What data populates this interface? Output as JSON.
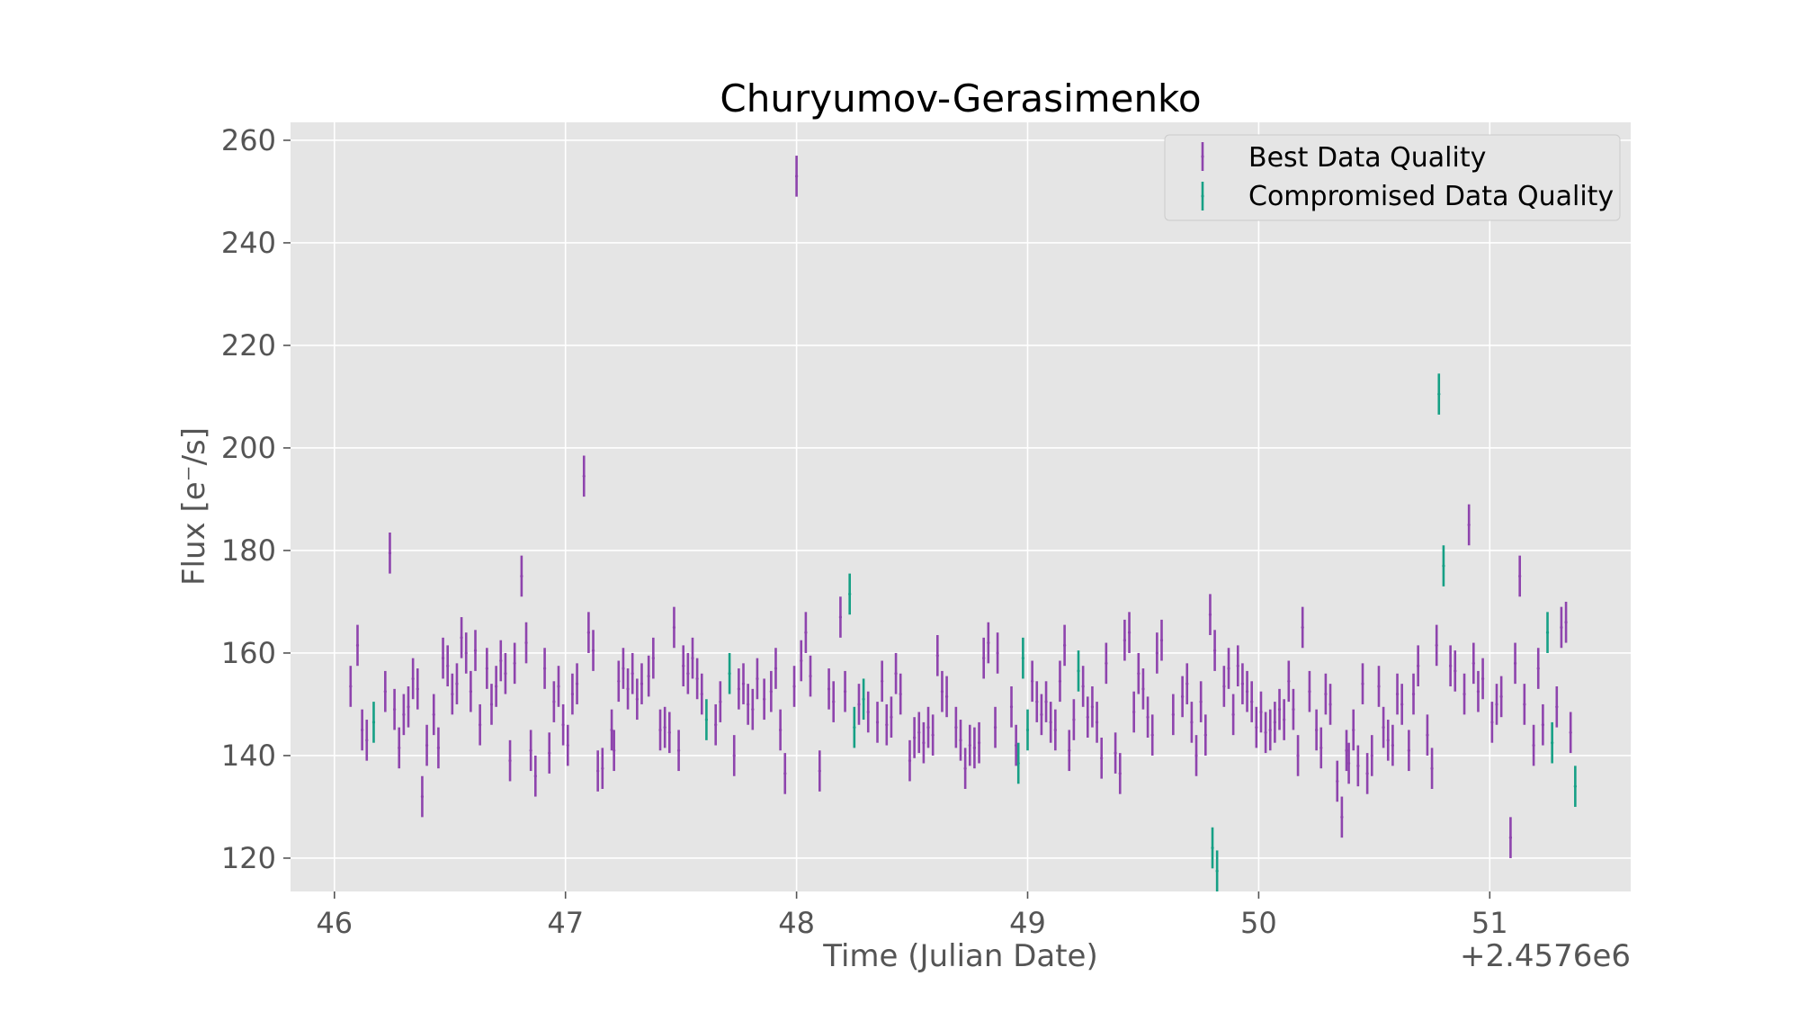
{
  "chart_data": {
    "type": "scatter",
    "title": "Churyumov-Gerasimenko",
    "xlabel": "Time (Julian Date)",
    "ylabel": "Flux [e⁻/s]",
    "x_offset_label": "+2.4576e6",
    "xlim": [
      45.81,
      51.61
    ],
    "ylim": [
      113.5,
      263.5
    ],
    "x_ticks": [
      46,
      47,
      48,
      49,
      50,
      51
    ],
    "x_tick_labels": [
      "46",
      "47",
      "48",
      "49",
      "50",
      "51"
    ],
    "y_ticks": [
      120,
      140,
      160,
      180,
      200,
      220,
      240,
      260
    ],
    "y_tick_labels": [
      "120",
      "140",
      "160",
      "180",
      "200",
      "220",
      "240",
      "260"
    ],
    "grid": true,
    "legend_position": "upper right",
    "colors": {
      "best": "#8e44ad",
      "compromised": "#16a085",
      "plot_background": "#e5e5e5",
      "grid": "#ffffff"
    },
    "series": [
      {
        "name": "Best Data Quality",
        "color": "#8e44ad",
        "error": 4,
        "points": [
          [
            46.07,
            153.5
          ],
          [
            46.1,
            161.5
          ],
          [
            46.12,
            145
          ],
          [
            46.14,
            143
          ],
          [
            46.22,
            152.5
          ],
          [
            46.24,
            179.5
          ],
          [
            46.26,
            149
          ],
          [
            46.28,
            141.5
          ],
          [
            46.3,
            148
          ],
          [
            46.32,
            149.5
          ],
          [
            46.34,
            155
          ],
          [
            46.36,
            153
          ],
          [
            46.38,
            132
          ],
          [
            46.4,
            142
          ],
          [
            46.43,
            148
          ],
          [
            46.45,
            141.5
          ],
          [
            46.47,
            159
          ],
          [
            46.49,
            157.5
          ],
          [
            46.51,
            152
          ],
          [
            46.53,
            154
          ],
          [
            46.55,
            163
          ],
          [
            46.57,
            160
          ],
          [
            46.59,
            152.5
          ],
          [
            46.61,
            160.5
          ],
          [
            46.63,
            146
          ],
          [
            46.66,
            157
          ],
          [
            46.68,
            150
          ],
          [
            46.7,
            153.5
          ],
          [
            46.72,
            158.5
          ],
          [
            46.74,
            156
          ],
          [
            46.76,
            139
          ],
          [
            46.78,
            158
          ],
          [
            46.81,
            175
          ],
          [
            46.83,
            162
          ],
          [
            46.85,
            141
          ],
          [
            46.87,
            136
          ],
          [
            46.91,
            157
          ],
          [
            46.93,
            140.5
          ],
          [
            46.95,
            150.5
          ],
          [
            46.97,
            153.5
          ],
          [
            46.99,
            146
          ],
          [
            47.01,
            142
          ],
          [
            47.03,
            152
          ],
          [
            47.05,
            154
          ],
          [
            47.08,
            194.5
          ],
          [
            47.1,
            164
          ],
          [
            47.12,
            160.5
          ],
          [
            47.14,
            137
          ],
          [
            47.16,
            137.5
          ],
          [
            47.2,
            145
          ],
          [
            47.21,
            141
          ],
          [
            47.23,
            154.5
          ],
          [
            47.25,
            157
          ],
          [
            47.27,
            153
          ],
          [
            47.29,
            156
          ],
          [
            47.31,
            151
          ],
          [
            47.33,
            154
          ],
          [
            47.36,
            155.5
          ],
          [
            47.38,
            159
          ],
          [
            47.41,
            145
          ],
          [
            47.43,
            145.5
          ],
          [
            47.45,
            144.5
          ],
          [
            47.47,
            165
          ],
          [
            47.49,
            141
          ],
          [
            47.51,
            157.5
          ],
          [
            47.53,
            156
          ],
          [
            47.55,
            159
          ],
          [
            47.57,
            155
          ],
          [
            47.59,
            152
          ],
          [
            47.65,
            146
          ],
          [
            47.67,
            150.5
          ],
          [
            47.73,
            140
          ],
          [
            47.75,
            153
          ],
          [
            47.77,
            154
          ],
          [
            47.79,
            150
          ],
          [
            47.81,
            149
          ],
          [
            47.83,
            155
          ],
          [
            47.86,
            151
          ],
          [
            47.89,
            152.5
          ],
          [
            47.91,
            157
          ],
          [
            47.93,
            145
          ],
          [
            47.95,
            136.5
          ],
          [
            47.99,
            153.5
          ],
          [
            48.0,
            253
          ],
          [
            48.02,
            158.5
          ],
          [
            48.04,
            164
          ],
          [
            48.06,
            155.5
          ],
          [
            48.1,
            137
          ],
          [
            48.14,
            153
          ],
          [
            48.16,
            150.5
          ],
          [
            48.19,
            167
          ],
          [
            48.21,
            152.5
          ],
          [
            48.27,
            150
          ],
          [
            48.31,
            148.5
          ],
          [
            48.35,
            146.5
          ],
          [
            48.37,
            154.5
          ],
          [
            48.39,
            146
          ],
          [
            48.41,
            147.5
          ],
          [
            48.43,
            156
          ],
          [
            48.45,
            152
          ],
          [
            48.49,
            139
          ],
          [
            48.51,
            143.5
          ],
          [
            48.53,
            144.5
          ],
          [
            48.55,
            142.5
          ],
          [
            48.57,
            145.5
          ],
          [
            48.59,
            144
          ],
          [
            48.61,
            159.5
          ],
          [
            48.63,
            152.5
          ],
          [
            48.65,
            151.5
          ],
          [
            48.69,
            145.5
          ],
          [
            48.71,
            143
          ],
          [
            48.73,
            137.5
          ],
          [
            48.75,
            142
          ],
          [
            48.77,
            141.5
          ],
          [
            48.79,
            142.5
          ],
          [
            48.81,
            159
          ],
          [
            48.83,
            162
          ],
          [
            48.86,
            145.5
          ],
          [
            48.87,
            160
          ],
          [
            48.93,
            149.5
          ],
          [
            48.95,
            142
          ],
          [
            49.02,
            154.5
          ],
          [
            49.04,
            150.5
          ],
          [
            49.06,
            148
          ],
          [
            49.08,
            150.5
          ],
          [
            49.1,
            146.5
          ],
          [
            49.12,
            145
          ],
          [
            49.14,
            154.5
          ],
          [
            49.16,
            161.5
          ],
          [
            49.18,
            141
          ],
          [
            49.2,
            147
          ],
          [
            49.24,
            153.5
          ],
          [
            49.26,
            147.5
          ],
          [
            49.28,
            149.5
          ],
          [
            49.3,
            146.5
          ],
          [
            49.32,
            139.5
          ],
          [
            49.34,
            158
          ],
          [
            49.38,
            140.5
          ],
          [
            49.4,
            136.5
          ],
          [
            49.42,
            162.5
          ],
          [
            49.44,
            164
          ],
          [
            49.46,
            148.5
          ],
          [
            49.48,
            156
          ],
          [
            49.5,
            153
          ],
          [
            49.52,
            147.5
          ],
          [
            49.54,
            144
          ],
          [
            49.56,
            160
          ],
          [
            49.58,
            162.5
          ],
          [
            49.63,
            148
          ],
          [
            49.67,
            151.5
          ],
          [
            49.69,
            154
          ],
          [
            49.71,
            146.5
          ],
          [
            49.73,
            140
          ],
          [
            49.75,
            150.5
          ],
          [
            49.77,
            144
          ],
          [
            49.79,
            167.5
          ],
          [
            49.81,
            160.5
          ],
          [
            49.85,
            153.5
          ],
          [
            49.87,
            157
          ],
          [
            49.89,
            148
          ],
          [
            49.91,
            157.5
          ],
          [
            49.93,
            154
          ],
          [
            49.95,
            152.5
          ],
          [
            49.97,
            150.5
          ],
          [
            49.99,
            145.5
          ],
          [
            50.01,
            148.5
          ],
          [
            50.03,
            144.5
          ],
          [
            50.05,
            145
          ],
          [
            50.07,
            146.5
          ],
          [
            50.09,
            149
          ],
          [
            50.11,
            147
          ],
          [
            50.13,
            154.5
          ],
          [
            50.15,
            149
          ],
          [
            50.17,
            140
          ],
          [
            50.19,
            165
          ],
          [
            50.22,
            152.5
          ],
          [
            50.25,
            145
          ],
          [
            50.27,
            141.5
          ],
          [
            50.29,
            152
          ],
          [
            50.31,
            150
          ],
          [
            50.34,
            135
          ],
          [
            50.36,
            128
          ],
          [
            50.38,
            141
          ],
          [
            50.39,
            138.5
          ],
          [
            50.41,
            145
          ],
          [
            50.43,
            138
          ],
          [
            50.45,
            154
          ],
          [
            50.47,
            136.5
          ],
          [
            50.49,
            140
          ],
          [
            50.52,
            153.5
          ],
          [
            50.54,
            145.5
          ],
          [
            50.56,
            143
          ],
          [
            50.58,
            142
          ],
          [
            50.6,
            152
          ],
          [
            50.62,
            150
          ],
          [
            50.65,
            141
          ],
          [
            50.67,
            152
          ],
          [
            50.69,
            157.5
          ],
          [
            50.73,
            144
          ],
          [
            50.75,
            137.5
          ],
          [
            50.77,
            161.5
          ],
          [
            50.83,
            157.5
          ],
          [
            50.85,
            156.5
          ],
          [
            50.89,
            152
          ],
          [
            50.91,
            185
          ],
          [
            50.93,
            158
          ],
          [
            50.95,
            152.5
          ],
          [
            50.97,
            155
          ],
          [
            51.01,
            146.5
          ],
          [
            51.03,
            150
          ],
          [
            51.05,
            151.5
          ],
          [
            51.09,
            124
          ],
          [
            51.11,
            158
          ],
          [
            51.13,
            175
          ],
          [
            51.15,
            150
          ],
          [
            51.19,
            142
          ],
          [
            51.21,
            157
          ],
          [
            51.23,
            146
          ],
          [
            51.29,
            149.5
          ],
          [
            51.31,
            165
          ],
          [
            51.33,
            166
          ],
          [
            51.35,
            144.5
          ]
        ]
      },
      {
        "name": "Compromised Data Quality",
        "color": "#16a085",
        "error": 4,
        "points": [
          [
            46.17,
            146.5
          ],
          [
            47.61,
            147
          ],
          [
            47.71,
            156
          ],
          [
            48.23,
            171.5
          ],
          [
            48.25,
            145.5
          ],
          [
            48.29,
            151
          ],
          [
            48.96,
            138.5
          ],
          [
            48.98,
            159
          ],
          [
            49.0,
            145
          ],
          [
            49.22,
            156.5
          ],
          [
            49.8,
            122
          ],
          [
            49.82,
            117.5
          ],
          [
            50.78,
            210.5
          ],
          [
            50.8,
            177
          ],
          [
            51.25,
            164
          ],
          [
            51.27,
            142.5
          ],
          [
            51.37,
            134
          ]
        ]
      }
    ]
  }
}
